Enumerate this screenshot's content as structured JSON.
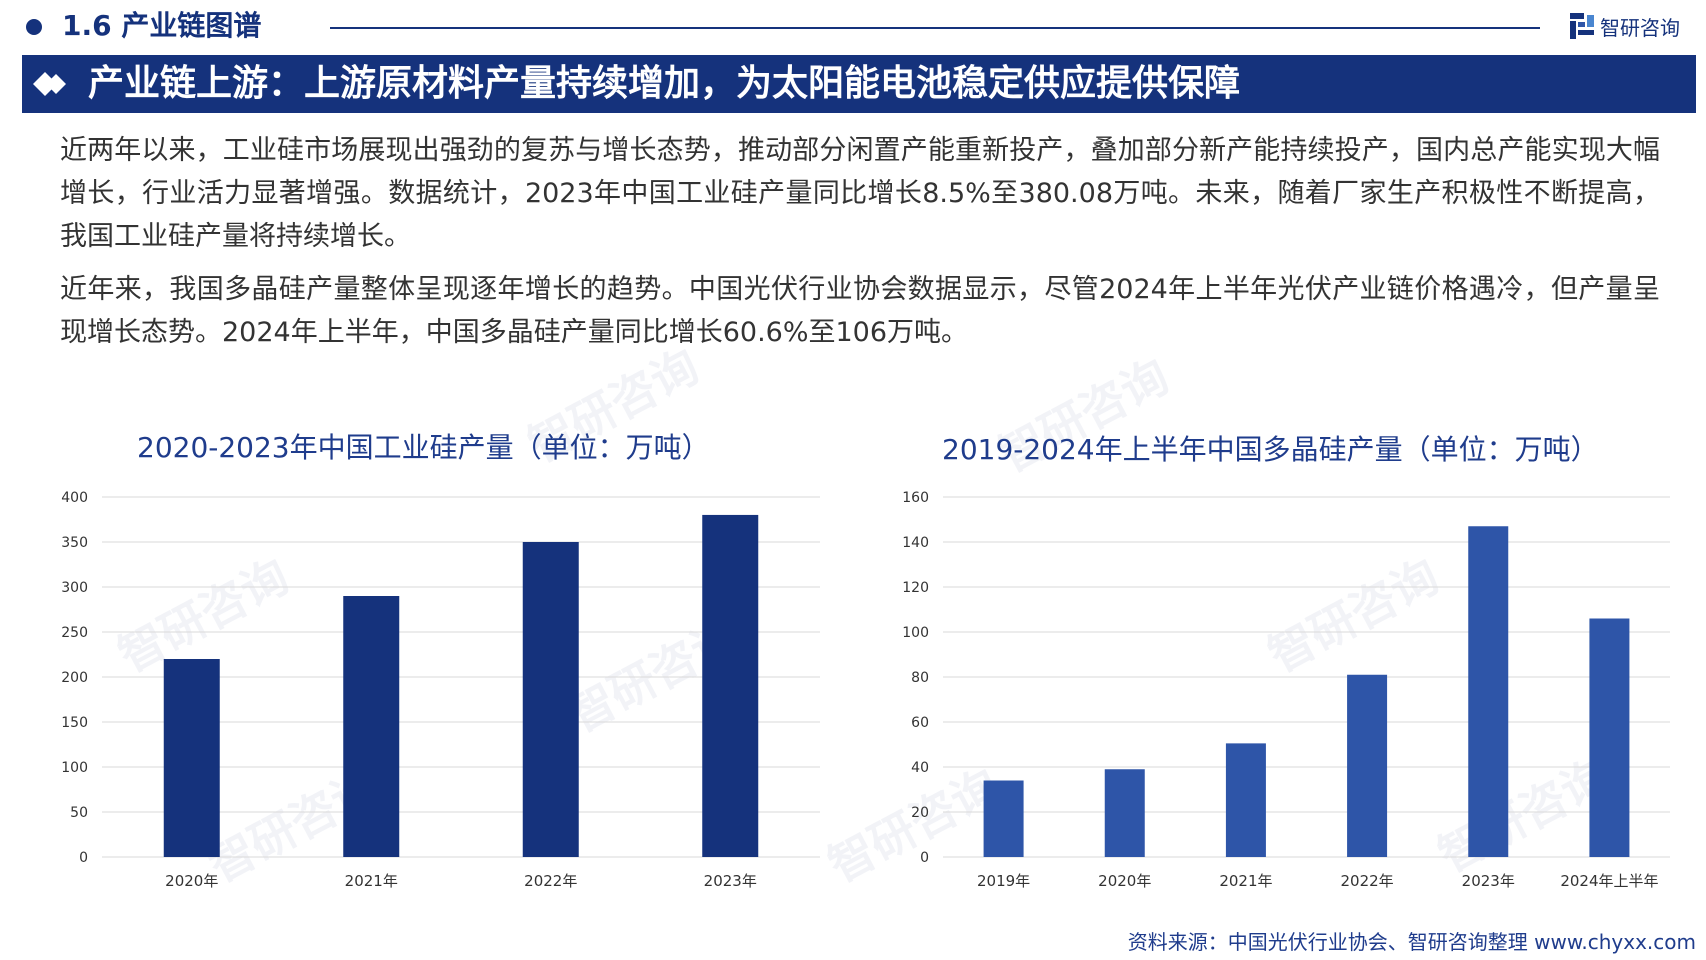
{
  "header": {
    "section_title": "1.6 产业链图谱",
    "brand_name": "智研咨询"
  },
  "headline": "产业链上游：上游原材料产量持续增加，为太阳能电池稳定供应提供保障",
  "paragraphs": [
    "近两年以来，工业硅市场展现出强劲的复苏与增长态势，推动部分闲置产能重新投产，叠加部分新产能持续投产，国内总产能实现大幅增长，行业活力显著增强。数据统计，2023年中国工业硅产量同比增长8.5%至380.08万吨。未来，随着厂家生产积极性不断提高，我国工业硅产量将持续增长。",
    "近年来，我国多晶硅产量整体呈现逐年增长的趋势。中国光伏行业协会数据显示，尽管2024年上半年光伏产业链价格遇冷，但产量呈现增长态势。2024年上半年，中国多晶硅产量同比增长60.6%至106万吨。"
  ],
  "chart_data": [
    {
      "type": "bar",
      "title": "2020-2023年中国工业硅产量（单位：万吨）",
      "categories": [
        "2020年",
        "2021年",
        "2022年",
        "2023年"
      ],
      "values": [
        220,
        290,
        350,
        380.08
      ],
      "ylim": [
        0,
        400
      ],
      "yticks": [
        0,
        50,
        100,
        150,
        200,
        250,
        300,
        350,
        400
      ],
      "grid": true,
      "color": "#15327c"
    },
    {
      "type": "bar",
      "title": "2019-2024年上半年中国多晶硅产量（单位：万吨）",
      "categories": [
        "2019年",
        "2020年",
        "2021年",
        "2022年",
        "2023年",
        "2024年上半年"
      ],
      "values": [
        34,
        39,
        50.5,
        81,
        147,
        106
      ],
      "ylim": [
        0,
        160
      ],
      "yticks": [
        0,
        20,
        40,
        60,
        80,
        100,
        120,
        140,
        160
      ],
      "grid": true,
      "color": "#2e55a8"
    }
  ],
  "source": "资料来源：中国光伏行业协会、智研咨询整理  www.chyxx.com",
  "watermark_text": "智研咨询",
  "colors": {
    "primary": "#15327c",
    "chart_title": "#1f3c8c",
    "bar_dark": "#15327c",
    "bar_light": "#2e55a8",
    "grid": "#d9d9d9"
  },
  "icons": [
    "brand-logo-icon",
    "diamond-bullet-icon"
  ]
}
